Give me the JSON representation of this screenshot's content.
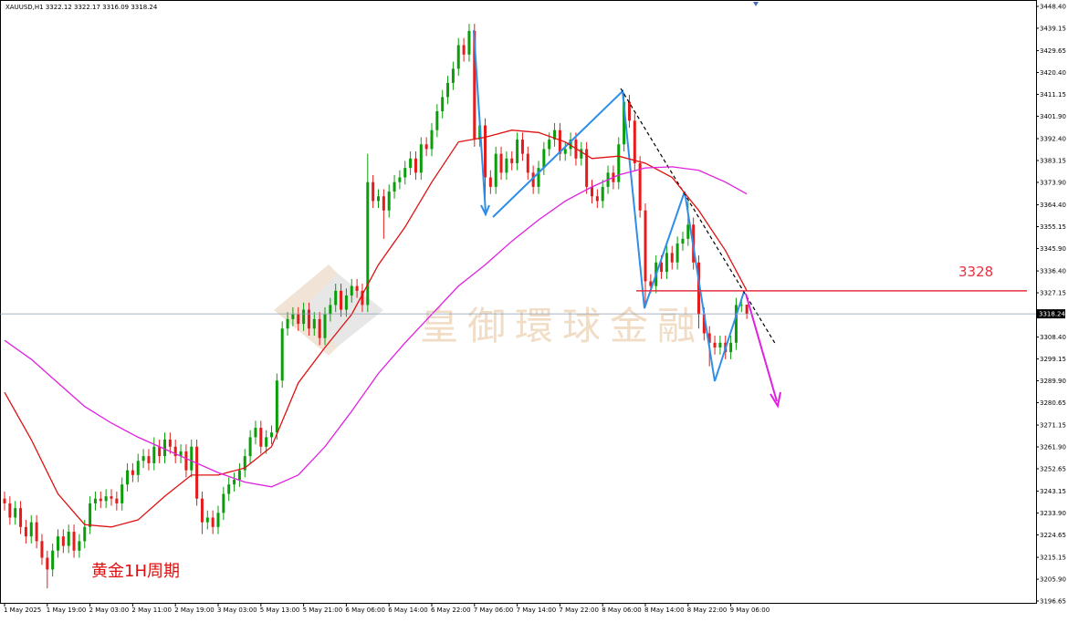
{
  "chart_data": {
    "type": "candlestick",
    "header": "XAUUSD,H1  3322.12 3322.17 3316.09 3318.24",
    "watermark": "皇御環球金融",
    "note": "黄金1H周期",
    "level": 3328,
    "last_price": 3318.24,
    "up_color": "#0b9e0b",
    "down_color": "#e41c1c",
    "ylim": [
      3195.5,
      3451.1
    ],
    "yticks": [
      {
        "value": 3448.4,
        "label": "3448.40"
      },
      3439.15,
      3429.65,
      {
        "value": 3420.4,
        "label": "3420.40"
      },
      3411.15,
      {
        "value": 3401.9,
        "label": "3401.90"
      },
      {
        "value": 3392.4,
        "label": "3392.40"
      },
      3383.15,
      {
        "value": 3373.9,
        "label": "3373.90"
      },
      {
        "value": 3364.4,
        "label": "3364.40"
      },
      3355.15,
      {
        "value": 3345.9,
        "label": "3345.90"
      },
      {
        "value": 3336.4,
        "label": "3336.40"
      },
      3327.15,
      {
        "value": 3308.4,
        "label": "3308.40"
      },
      3299.15,
      {
        "value": 3289.9,
        "label": "3289.90"
      },
      3280.65,
      3271.15,
      {
        "value": 3261.9,
        "label": "3261.90"
      },
      3252.65,
      3243.15,
      {
        "value": 3233.9,
        "label": "3233.90"
      },
      3224.65,
      3215.15,
      {
        "value": 3205.9,
        "label": "3205.90"
      },
      3196.65
    ],
    "categories": [
      "1 May 2025",
      null,
      null,
      null,
      null,
      null,
      null,
      null,
      "1 May 19:00",
      null,
      null,
      null,
      null,
      null,
      null,
      null,
      "2 May 03:00",
      null,
      null,
      null,
      null,
      null,
      null,
      null,
      "2 May 11:00",
      null,
      null,
      null,
      null,
      null,
      null,
      null,
      "2 May 19:00",
      null,
      null,
      null,
      null,
      null,
      null,
      null,
      "3 May 03:00",
      null,
      null,
      null,
      null,
      null,
      null,
      null,
      "5 May 13:00",
      null,
      null,
      null,
      null,
      null,
      null,
      null,
      "5 May 21:00",
      null,
      null,
      null,
      null,
      null,
      null,
      null,
      "6 May 06:00",
      null,
      null,
      null,
      null,
      null,
      null,
      null,
      "6 May 14:00",
      null,
      null,
      null,
      null,
      null,
      null,
      null,
      "6 May 22:00",
      null,
      null,
      null,
      null,
      null,
      null,
      null,
      "7 May 06:00",
      null,
      null,
      null,
      null,
      null,
      null,
      null,
      "7 May 14:00",
      null,
      null,
      null,
      null,
      null,
      null,
      null,
      "7 May 22:00",
      null,
      null,
      null,
      null,
      null,
      null,
      null,
      "8 May 06:00",
      null,
      null,
      null,
      null,
      null,
      null,
      null,
      "8 May 14:00",
      null,
      null,
      null,
      null,
      null,
      null,
      null,
      "8 May 22:00",
      null,
      null,
      null,
      null,
      null,
      null,
      null,
      "9 May 06:00",
      null,
      null,
      null
    ],
    "ohlc": [
      [
        3240,
        3243,
        3235,
        3238
      ],
      [
        3238,
        3241,
        3229,
        3232
      ],
      [
        3232,
        3239,
        3229,
        3236
      ],
      [
        3236,
        3239,
        3225,
        3228
      ],
      [
        3228,
        3231,
        3221,
        3224
      ],
      [
        3224,
        3233,
        3221,
        3230
      ],
      [
        3230,
        3233,
        3219,
        3222
      ],
      [
        3222,
        3225,
        3212,
        3215
      ],
      [
        3215,
        3218,
        3202,
        3210
      ],
      [
        3210,
        3221,
        3207,
        3218
      ],
      [
        3218,
        3227,
        3215,
        3224
      ],
      [
        3224,
        3227,
        3217,
        3220
      ],
      [
        3220,
        3229,
        3217,
        3226
      ],
      [
        3226,
        3229,
        3215,
        3218
      ],
      [
        3218,
        3225,
        3215,
        3222
      ],
      [
        3222,
        3231,
        3219,
        3228
      ],
      [
        3228,
        3241,
        3225,
        3238
      ],
      [
        3238,
        3243,
        3235,
        3240
      ],
      [
        3240,
        3243,
        3236,
        3239
      ],
      [
        3239,
        3244,
        3236,
        3241
      ],
      [
        3241,
        3244,
        3237,
        3240
      ],
      [
        3240,
        3243,
        3235,
        3238
      ],
      [
        3238,
        3249,
        3235,
        3246
      ],
      [
        3246,
        3255,
        3243,
        3252
      ],
      [
        3252,
        3255,
        3247,
        3250
      ],
      [
        3250,
        3259,
        3247,
        3256
      ],
      [
        3256,
        3261,
        3253,
        3258
      ],
      [
        3258,
        3261,
        3252,
        3255
      ],
      [
        3255,
        3266,
        3252,
        3262
      ],
      [
        3262,
        3265,
        3255,
        3258
      ],
      [
        3258,
        3268,
        3255,
        3265
      ],
      [
        3265,
        3268,
        3259,
        3262
      ],
      [
        3262,
        3265,
        3255,
        3258
      ],
      [
        3258,
        3263,
        3255,
        3260
      ],
      [
        3260,
        3263,
        3249,
        3252
      ],
      [
        3252,
        3265,
        3249,
        3262
      ],
      [
        3262,
        3265,
        3237,
        3240
      ],
      [
        3240,
        3243,
        3225,
        3230
      ],
      [
        3230,
        3235,
        3227,
        3232
      ],
      [
        3232,
        3235,
        3225,
        3228
      ],
      [
        3228,
        3237,
        3225,
        3234
      ],
      [
        3234,
        3245,
        3231,
        3242
      ],
      [
        3242,
        3249,
        3239,
        3246
      ],
      [
        3246,
        3251,
        3243,
        3248
      ],
      [
        3248,
        3255,
        3245,
        3252
      ],
      [
        3252,
        3261,
        3249,
        3258
      ],
      [
        3258,
        3269,
        3255,
        3266
      ],
      [
        3266,
        3273,
        3263,
        3270
      ],
      [
        3270,
        3273,
        3259,
        3262
      ],
      [
        3262,
        3269,
        3259,
        3266
      ],
      [
        3266,
        3271,
        3263,
        3268
      ],
      [
        3268,
        3293,
        3265,
        3290
      ],
      [
        3290,
        3315,
        3287,
        3312
      ],
      [
        3312,
        3319,
        3309,
        3316
      ],
      [
        3316,
        3321,
        3313,
        3318
      ],
      [
        3318,
        3321,
        3311,
        3314
      ],
      [
        3314,
        3323,
        3311,
        3320
      ],
      [
        3320,
        3323,
        3309,
        3312
      ],
      [
        3312,
        3319,
        3309,
        3316
      ],
      [
        3316,
        3319,
        3305,
        3308
      ],
      [
        3308,
        3321,
        3305,
        3318
      ],
      [
        3318,
        3325,
        3315,
        3322
      ],
      [
        3322,
        3331,
        3319,
        3328
      ],
      [
        3328,
        3331,
        3317,
        3320
      ],
      [
        3320,
        3329,
        3317,
        3326
      ],
      [
        3326,
        3333,
        3323,
        3330
      ],
      [
        3330,
        3333,
        3325,
        3328
      ],
      [
        3328,
        3331,
        3319,
        3322
      ],
      [
        3322,
        3386,
        3319,
        3374
      ],
      [
        3374,
        3377,
        3363,
        3366
      ],
      [
        3366,
        3371,
        3363,
        3368
      ],
      [
        3368,
        3371,
        3350,
        3362
      ],
      [
        3362,
        3373,
        3359,
        3370
      ],
      [
        3370,
        3377,
        3367,
        3374
      ],
      [
        3374,
        3379,
        3371,
        3376
      ],
      [
        3376,
        3383,
        3373,
        3380
      ],
      [
        3380,
        3387,
        3377,
        3384
      ],
      [
        3384,
        3387,
        3375,
        3378
      ],
      [
        3378,
        3393,
        3375,
        3390
      ],
      [
        3390,
        3393,
        3385,
        3388
      ],
      [
        3388,
        3399,
        3385,
        3396
      ],
      [
        3396,
        3407,
        3393,
        3404
      ],
      [
        3404,
        3413,
        3401,
        3410
      ],
      [
        3410,
        3419,
        3407,
        3416
      ],
      [
        3416,
        3425,
        3413,
        3422
      ],
      [
        3422,
        3435,
        3419,
        3432
      ],
      [
        3432,
        3435,
        3425,
        3428
      ],
      [
        3428,
        3441,
        3425,
        3438
      ],
      [
        3438,
        3441,
        3389,
        3392
      ],
      [
        3392,
        3401,
        3389,
        3398
      ],
      [
        3398,
        3401,
        3360,
        3376
      ],
      [
        3376,
        3379,
        3369,
        3372
      ],
      [
        3372,
        3389,
        3369,
        3386
      ],
      [
        3386,
        3389,
        3375,
        3378
      ],
      [
        3378,
        3387,
        3375,
        3384
      ],
      [
        3384,
        3387,
        3379,
        3382
      ],
      [
        3382,
        3395,
        3379,
        3392
      ],
      [
        3392,
        3395,
        3383,
        3386
      ],
      [
        3386,
        3389,
        3375,
        3378
      ],
      [
        3378,
        3381,
        3369,
        3372
      ],
      [
        3372,
        3383,
        3369,
        3380
      ],
      [
        3380,
        3391,
        3377,
        3388
      ],
      [
        3388,
        3395,
        3385,
        3392
      ],
      [
        3392,
        3399,
        3389,
        3396
      ],
      [
        3396,
        3399,
        3383,
        3386
      ],
      [
        3386,
        3391,
        3383,
        3388
      ],
      [
        3388,
        3395,
        3385,
        3392
      ],
      [
        3392,
        3395,
        3381,
        3384
      ],
      [
        3384,
        3391,
        3381,
        3388
      ],
      [
        3388,
        3391,
        3369,
        3372
      ],
      [
        3372,
        3375,
        3365,
        3368
      ],
      [
        3368,
        3371,
        3363,
        3366
      ],
      [
        3366,
        3375,
        3363,
        3372
      ],
      [
        3372,
        3381,
        3369,
        3378
      ],
      [
        3378,
        3381,
        3371,
        3374
      ],
      [
        3374,
        3393,
        3371,
        3390
      ],
      [
        3390,
        3412,
        3387,
        3408
      ],
      [
        3408,
        3411,
        3397,
        3400
      ],
      [
        3400,
        3403,
        3379,
        3382
      ],
      [
        3382,
        3385,
        3359,
        3362
      ],
      [
        3362,
        3365,
        3322,
        3332
      ],
      [
        3332,
        3335,
        3327,
        3330
      ],
      [
        3330,
        3343,
        3327,
        3340
      ],
      [
        3340,
        3343,
        3333,
        3336
      ],
      [
        3336,
        3347,
        3333,
        3344
      ],
      [
        3344,
        3347,
        3337,
        3340
      ],
      [
        3340,
        3351,
        3337,
        3348
      ],
      [
        3348,
        3353,
        3345,
        3350
      ],
      [
        3350,
        3366,
        3347,
        3356
      ],
      [
        3356,
        3359,
        3337,
        3340
      ],
      [
        3340,
        3343,
        3312,
        3318
      ],
      [
        3318,
        3321,
        3307,
        3310
      ],
      [
        3310,
        3313,
        3296,
        3306
      ],
      [
        3306,
        3309,
        3301,
        3304
      ],
      [
        3304,
        3309,
        3301,
        3306
      ],
      [
        3306,
        3309,
        3299,
        3302
      ],
      [
        3302,
        3309,
        3299,
        3306
      ],
      [
        3306,
        3325,
        3303,
        3322
      ],
      [
        3322,
        3325,
        3319,
        3322
      ],
      [
        3322.12,
        3322.17,
        3316.09,
        3318.24
      ]
    ],
    "moving_averages": [
      {
        "color": "#e01010",
        "x": [
          0,
          5,
          10,
          15,
          20,
          25,
          30,
          35,
          40,
          45,
          50,
          55,
          60,
          65,
          70,
          75,
          80,
          85,
          90,
          95,
          100,
          105,
          110,
          115,
          120,
          125,
          130,
          135,
          139
        ],
        "values": [
          3285,
          3265,
          3242,
          3229,
          3228,
          3231,
          3241,
          3250,
          3250,
          3253,
          3262,
          3289,
          3304,
          3318,
          3339,
          3355,
          3374,
          3391,
          3393,
          3396,
          3395,
          3391,
          3384,
          3385,
          3382,
          3376,
          3362,
          3345,
          3328
        ]
      },
      {
        "color": "#e020e0",
        "x": [
          0,
          5,
          10,
          15,
          20,
          25,
          30,
          35,
          40,
          45,
          50,
          55,
          60,
          65,
          70,
          75,
          80,
          85,
          90,
          95,
          100,
          105,
          110,
          115,
          120,
          125,
          130,
          135,
          139
        ],
        "values": [
          3307,
          3299,
          3289,
          3279,
          3272,
          3266,
          3261,
          3256,
          3251,
          3247,
          3245,
          3250,
          3262,
          3277,
          3293,
          3306,
          3318,
          3330,
          3339,
          3349,
          3358,
          3366,
          3372,
          3377,
          3380,
          3380.5,
          3379,
          3374,
          3369
        ]
      }
    ]
  }
}
